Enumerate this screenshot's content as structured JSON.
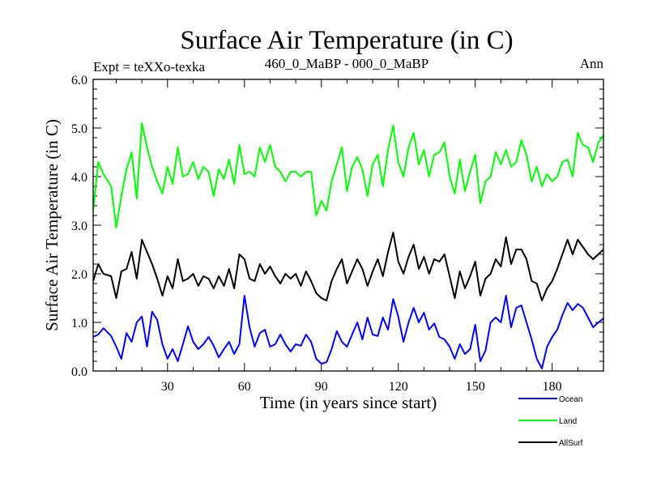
{
  "chart_data": {
    "type": "line",
    "title": "Surface Air Temperature (in C)",
    "subtitle_left": "Expt = teXXo-texka",
    "subtitle_center": "460_0_MaBP - 000_0_MaBP",
    "subtitle_right": "Ann",
    "xlabel": "Time (in years since start)",
    "ylabel": "Surface Air Temperature (in C)",
    "xlim": [
      1,
      200
    ],
    "ylim": [
      0,
      6
    ],
    "xticks": [
      30,
      60,
      90,
      120,
      150,
      180
    ],
    "yticks": [
      0,
      1,
      2,
      3,
      4,
      5,
      6
    ],
    "ytick_labels": [
      "0.0",
      "1.0",
      "2.0",
      "3.0",
      "4.0",
      "5.0",
      "6.0"
    ],
    "series": [
      {
        "name": "Ocean",
        "color": "#0000ff",
        "x": [
          1,
          3,
          5,
          8,
          10,
          12,
          14,
          16,
          18,
          20,
          22,
          24,
          26,
          28,
          30,
          32,
          34,
          36,
          38,
          40,
          42,
          44,
          46,
          48,
          50,
          52,
          54,
          56,
          58,
          60,
          62,
          64,
          66,
          68,
          70,
          72,
          74,
          76,
          78,
          80,
          82,
          84,
          86,
          88,
          90,
          92,
          94,
          96,
          98,
          100,
          102,
          104,
          106,
          108,
          110,
          112,
          114,
          116,
          118,
          120,
          122,
          124,
          126,
          128,
          130,
          132,
          134,
          136,
          138,
          140,
          142,
          144,
          146,
          148,
          150,
          152,
          154,
          156,
          158,
          160,
          162,
          164,
          166,
          168,
          170,
          172,
          174,
          176,
          178,
          180,
          182,
          184,
          186,
          188,
          190,
          192,
          194,
          196,
          198,
          200
        ],
        "values": [
          0.7,
          0.75,
          0.88,
          0.72,
          0.5,
          0.25,
          0.78,
          0.6,
          1.0,
          1.12,
          0.5,
          1.22,
          1.05,
          0.55,
          0.25,
          0.45,
          0.2,
          0.55,
          0.92,
          0.6,
          0.45,
          0.55,
          0.7,
          0.52,
          0.28,
          0.45,
          0.6,
          0.35,
          0.55,
          1.55,
          0.9,
          0.5,
          0.78,
          0.85,
          0.5,
          0.55,
          0.75,
          0.55,
          0.4,
          0.55,
          0.52,
          0.75,
          0.6,
          0.25,
          0.15,
          0.18,
          0.45,
          0.82,
          0.6,
          0.5,
          0.75,
          1.0,
          0.65,
          1.1,
          0.75,
          0.72,
          1.1,
          0.85,
          1.48,
          1.12,
          0.6,
          1.0,
          1.3,
          1.0,
          1.2,
          0.85,
          0.98,
          0.7,
          0.65,
          0.5,
          0.25,
          0.55,
          0.35,
          0.45,
          0.95,
          0.2,
          0.42,
          1.0,
          1.1,
          1.0,
          1.55,
          0.9,
          1.3,
          1.35,
          1.0,
          0.65,
          0.25,
          0.05,
          0.5,
          0.7,
          0.85,
          1.15,
          1.4,
          1.25,
          1.38,
          1.3,
          1.1,
          0.9,
          1.0,
          1.08
        ]
      },
      {
        "name": "Land",
        "color": "#00ff00",
        "x": [
          1,
          3,
          5,
          8,
          10,
          12,
          14,
          16,
          18,
          20,
          22,
          24,
          26,
          28,
          30,
          32,
          34,
          36,
          38,
          40,
          42,
          44,
          46,
          48,
          50,
          52,
          54,
          56,
          58,
          60,
          62,
          64,
          66,
          68,
          70,
          72,
          74,
          76,
          78,
          80,
          82,
          84,
          86,
          88,
          90,
          92,
          94,
          96,
          98,
          100,
          102,
          104,
          106,
          108,
          110,
          112,
          114,
          116,
          118,
          120,
          122,
          124,
          126,
          128,
          130,
          132,
          134,
          136,
          138,
          140,
          142,
          144,
          146,
          148,
          150,
          152,
          154,
          156,
          158,
          160,
          162,
          164,
          166,
          168,
          170,
          172,
          174,
          176,
          178,
          180,
          182,
          184,
          186,
          188,
          190,
          192,
          194,
          196,
          198,
          200
        ],
        "values": [
          3.3,
          4.3,
          4.05,
          3.8,
          2.95,
          3.6,
          4.15,
          4.5,
          3.55,
          5.1,
          4.6,
          4.2,
          3.9,
          3.65,
          4.2,
          3.85,
          4.6,
          4.0,
          4.05,
          4.3,
          3.95,
          4.2,
          4.1,
          3.6,
          4.15,
          3.95,
          4.35,
          3.85,
          4.65,
          4.05,
          4.1,
          4.0,
          4.6,
          4.3,
          4.65,
          4.2,
          4.1,
          3.9,
          4.1,
          4.1,
          4.0,
          4.1,
          4.1,
          3.2,
          3.5,
          3.3,
          3.9,
          4.25,
          4.6,
          3.7,
          4.2,
          4.4,
          4.15,
          3.6,
          4.25,
          4.45,
          3.8,
          4.55,
          5.05,
          4.3,
          4.0,
          4.6,
          4.9,
          4.25,
          4.55,
          4.0,
          4.45,
          4.5,
          4.7,
          4.0,
          3.65,
          4.35,
          3.7,
          4.1,
          4.45,
          3.45,
          3.9,
          4.0,
          4.5,
          4.25,
          4.55,
          4.2,
          4.3,
          4.75,
          4.45,
          3.9,
          4.2,
          3.8,
          4.05,
          3.9,
          4.0,
          4.3,
          4.35,
          4.0,
          4.9,
          4.65,
          4.6,
          4.3,
          4.7,
          4.85
        ]
      },
      {
        "name": "AllSurf",
        "color": "#000000",
        "x": [
          1,
          3,
          5,
          8,
          10,
          12,
          14,
          16,
          18,
          20,
          22,
          24,
          26,
          28,
          30,
          32,
          34,
          36,
          38,
          40,
          42,
          44,
          46,
          48,
          50,
          52,
          54,
          56,
          58,
          60,
          62,
          64,
          66,
          68,
          70,
          72,
          74,
          76,
          78,
          80,
          82,
          84,
          86,
          88,
          90,
          92,
          94,
          96,
          98,
          100,
          102,
          104,
          106,
          108,
          110,
          112,
          114,
          116,
          118,
          120,
          122,
          124,
          126,
          128,
          130,
          132,
          134,
          136,
          138,
          140,
          142,
          144,
          146,
          148,
          150,
          152,
          154,
          156,
          158,
          160,
          162,
          164,
          166,
          168,
          170,
          172,
          174,
          176,
          178,
          180,
          182,
          184,
          186,
          188,
          190,
          192,
          194,
          196,
          198,
          200
        ],
        "values": [
          1.85,
          2.2,
          2.0,
          1.95,
          1.5,
          2.05,
          2.1,
          2.45,
          1.9,
          2.7,
          2.45,
          2.2,
          1.9,
          1.55,
          1.95,
          1.7,
          2.3,
          1.85,
          1.9,
          2.0,
          1.75,
          1.95,
          1.9,
          1.7,
          1.95,
          1.75,
          2.1,
          1.7,
          2.4,
          2.3,
          1.9,
          1.85,
          2.2,
          2.0,
          2.15,
          1.95,
          1.8,
          2.0,
          1.9,
          2.0,
          1.75,
          2.05,
          1.85,
          1.6,
          1.5,
          1.45,
          1.85,
          2.1,
          2.3,
          1.8,
          2.05,
          2.3,
          2.1,
          1.75,
          2.05,
          2.3,
          1.95,
          2.45,
          2.85,
          2.25,
          2.0,
          2.35,
          2.6,
          2.1,
          2.35,
          2.0,
          2.3,
          2.25,
          2.4,
          1.95,
          1.5,
          2.05,
          1.7,
          1.95,
          2.25,
          1.55,
          1.9,
          2.0,
          2.3,
          2.15,
          2.75,
          2.2,
          2.5,
          2.5,
          2.3,
          1.85,
          1.8,
          1.45,
          1.7,
          1.85,
          2.1,
          2.4,
          2.7,
          2.4,
          2.7,
          2.55,
          2.4,
          2.3,
          2.4,
          2.5
        ]
      }
    ],
    "legend": {
      "placement": "bottom-right",
      "entries": [
        "Ocean",
        "Land",
        "AllSurf"
      ]
    }
  }
}
